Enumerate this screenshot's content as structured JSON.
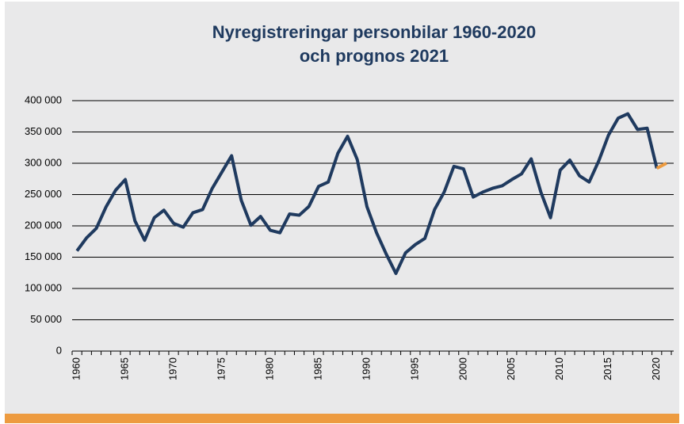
{
  "chart_data": {
    "type": "line",
    "title": [
      "Nyregistreringar personbilar 1960-2020",
      "och prognos 2021"
    ],
    "x": [
      1960,
      1961,
      1962,
      1963,
      1964,
      1965,
      1966,
      1967,
      1968,
      1969,
      1970,
      1971,
      1972,
      1973,
      1974,
      1975,
      1976,
      1977,
      1978,
      1979,
      1980,
      1981,
      1982,
      1983,
      1984,
      1985,
      1986,
      1987,
      1988,
      1989,
      1990,
      1991,
      1992,
      1993,
      1994,
      1995,
      1996,
      1997,
      1998,
      1999,
      2000,
      2001,
      2002,
      2003,
      2004,
      2005,
      2006,
      2007,
      2008,
      2009,
      2010,
      2011,
      2012,
      2013,
      2014,
      2015,
      2016,
      2017,
      2018,
      2019,
      2020,
      2021
    ],
    "series": [
      {
        "color": "#1f3a5f",
        "values": [
          160000,
          181000,
          196000,
          230000,
          257000,
          274000,
          208000,
          177000,
          213000,
          225000,
          204000,
          198000,
          221000,
          226000,
          260000,
          286000,
          312000,
          241000,
          201000,
          215000,
          193000,
          189000,
          219000,
          217000,
          231000,
          263000,
          270000,
          316000,
          343000,
          306000,
          231000,
          189000,
          155000,
          124000,
          157000,
          170000,
          180000,
          226000,
          254000,
          295000,
          291000,
          246000,
          254000,
          260000,
          264000,
          274000,
          283000,
          307000,
          254000,
          213000,
          289000,
          305000,
          280000,
          270000,
          304000,
          345000,
          372000,
          379000,
          354000,
          356000,
          292000,
          null
        ]
      },
      {
        "color": "#ed9b40",
        "values": [
          null,
          null,
          null,
          null,
          null,
          null,
          null,
          null,
          null,
          null,
          null,
          null,
          null,
          null,
          null,
          null,
          null,
          null,
          null,
          null,
          null,
          null,
          null,
          null,
          null,
          null,
          null,
          null,
          null,
          null,
          null,
          null,
          null,
          null,
          null,
          null,
          null,
          null,
          null,
          null,
          null,
          null,
          null,
          null,
          null,
          null,
          null,
          null,
          null,
          null,
          null,
          null,
          null,
          null,
          null,
          null,
          null,
          null,
          null,
          null,
          292000,
          300000
        ]
      }
    ],
    "xlim": [
      1959.5,
      2021.5
    ],
    "xticks": [
      1960,
      1965,
      1970,
      1975,
      1980,
      1985,
      1990,
      1995,
      2000,
      2005,
      2010,
      2015,
      2020
    ],
    "ylim": [
      0,
      400000
    ],
    "yticks": [
      0,
      {
        "value": 50000,
        "label": "50 000"
      },
      {
        "value": 100000,
        "label": "100 000"
      },
      {
        "value": 150000,
        "label": "150 000"
      },
      {
        "value": 200000,
        "label": "200 000"
      },
      {
        "value": 250000,
        "label": "250 000"
      },
      {
        "value": 300000,
        "label": "300 000"
      },
      {
        "value": 350000,
        "label": "350 000"
      },
      {
        "value": 400000,
        "label": "400 000"
      }
    ],
    "grid": true
  }
}
